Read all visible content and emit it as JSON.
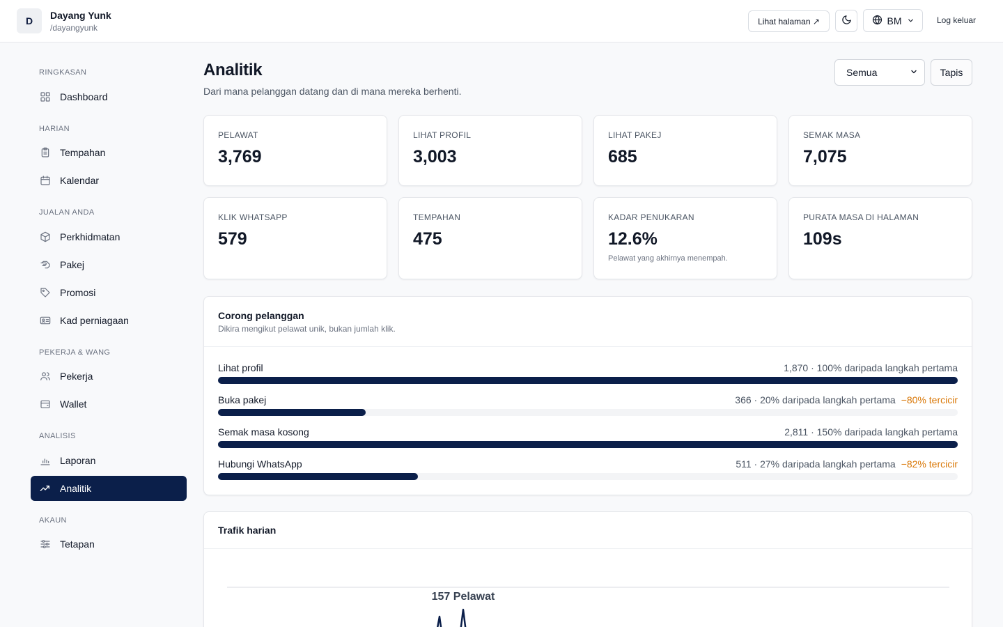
{
  "header": {
    "avatar_letter": "D",
    "user_name": "Dayang Yunk",
    "user_handle": "/dayangyunk",
    "view_page_label": "Lihat halaman ↗",
    "language_label": "BM",
    "logout_label": "Log keluar"
  },
  "sidebar": {
    "sections": [
      {
        "label": "RINGKASAN",
        "items": [
          {
            "label": "Dashboard",
            "icon": "grid-icon"
          }
        ]
      },
      {
        "label": "HARIAN",
        "items": [
          {
            "label": "Tempahan",
            "icon": "clipboard-icon"
          },
          {
            "label": "Kalendar",
            "icon": "calendar-icon"
          }
        ]
      },
      {
        "label": "JUALAN ANDA",
        "items": [
          {
            "label": "Perkhidmatan",
            "icon": "box-icon"
          },
          {
            "label": "Pakej",
            "icon": "hand-icon"
          },
          {
            "label": "Promosi",
            "icon": "tag-icon"
          },
          {
            "label": "Kad perniagaan",
            "icon": "id-card-icon"
          }
        ]
      },
      {
        "label": "PEKERJA & WANG",
        "items": [
          {
            "label": "Pekerja",
            "icon": "users-icon"
          },
          {
            "label": "Wallet",
            "icon": "wallet-icon"
          }
        ]
      },
      {
        "label": "ANALISIS",
        "items": [
          {
            "label": "Laporan",
            "icon": "bar-chart-icon"
          },
          {
            "label": "Analitik",
            "icon": "trend-icon",
            "active": true
          }
        ]
      },
      {
        "label": "AKAUN",
        "items": [
          {
            "label": "Tetapan",
            "icon": "sliders-icon"
          }
        ]
      }
    ]
  },
  "main": {
    "title": "Analitik",
    "subtitle": "Dari mana pelanggan datang dan di mana mereka berhenti.",
    "filter_select": "Semua",
    "filter_button": "Tapis"
  },
  "stats": [
    {
      "label": "PELAWAT",
      "value": "3,769",
      "note": ""
    },
    {
      "label": "LIHAT PROFIL",
      "value": "3,003",
      "note": ""
    },
    {
      "label": "LIHAT PAKEJ",
      "value": "685",
      "note": ""
    },
    {
      "label": "SEMAK MASA",
      "value": "7,075",
      "note": ""
    },
    {
      "label": "KLIK WHATSAPP",
      "value": "579",
      "note": ""
    },
    {
      "label": "TEMPAHAN",
      "value": "475",
      "note": ""
    },
    {
      "label": "KADAR PENUKARAN",
      "value": "12.6%",
      "note": "Pelawat yang akhirnya menempah."
    },
    {
      "label": "PURATA MASA DI HALAMAN",
      "value": "109s",
      "note": ""
    }
  ],
  "funnel": {
    "title": "Corong pelanggan",
    "subtitle": "Dikira mengikut pelawat unik, bukan jumlah klik.",
    "steps": [
      {
        "name": "Lihat profil",
        "stat": "1,870 · 100% daripada langkah pertama",
        "drop": "",
        "fill": 1.0
      },
      {
        "name": "Buka pakej",
        "stat": "366 · 20% daripada langkah pertama",
        "drop": "−80% tercicir",
        "fill": 0.2
      },
      {
        "name": "Semak masa kosong",
        "stat": "2,811 · 150% daripada langkah pertama",
        "drop": "",
        "fill": 1.0
      },
      {
        "name": "Hubungi WhatsApp",
        "stat": "511 · 27% daripada langkah pertama",
        "drop": "−82% tercicir",
        "fill": 0.27
      }
    ]
  },
  "traffic": {
    "title": "Trafik harian",
    "peak_label": "157 Pelawat"
  },
  "colors": {
    "accent": "#0b1f4a",
    "warning": "#d97706"
  }
}
